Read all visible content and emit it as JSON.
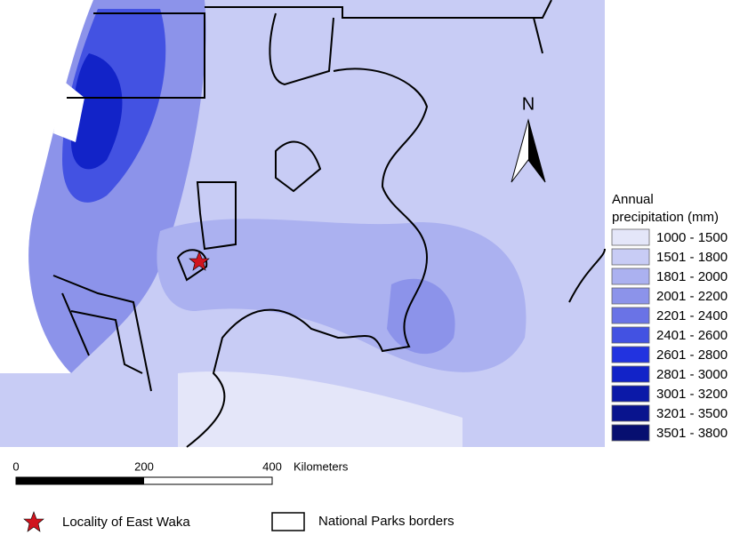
{
  "map": {
    "north_label": "N",
    "legend": {
      "title_lines": [
        "Annual",
        "precipitation (mm)"
      ],
      "items": [
        {
          "label": "1000 - 1500",
          "color": "#e4e6f9"
        },
        {
          "label": "1501 - 1800",
          "color": "#c8ccf5"
        },
        {
          "label": "1801 - 2000",
          "color": "#abb1f0"
        },
        {
          "label": "2001 - 2200",
          "color": "#8c93ea"
        },
        {
          "label": "2201 - 2400",
          "color": "#6a73e6"
        },
        {
          "label": "2401 - 2600",
          "color": "#4352e2"
        },
        {
          "label": "2601 - 2800",
          "color": "#2233e0"
        },
        {
          "label": "2801 - 3000",
          "color": "#1223c8"
        },
        {
          "label": "3001 - 3200",
          "color": "#0b19a8"
        },
        {
          "label": "3201 - 3500",
          "color": "#09148e"
        },
        {
          "label": "3501 - 3800",
          "color": "#070f70"
        }
      ]
    },
    "scale_bar": {
      "ticks": [
        "0",
        "200",
        "400"
      ],
      "unit": "Kilometers"
    },
    "key": {
      "locality": "Locality of East Waka",
      "parks": "National Parks borders"
    }
  }
}
